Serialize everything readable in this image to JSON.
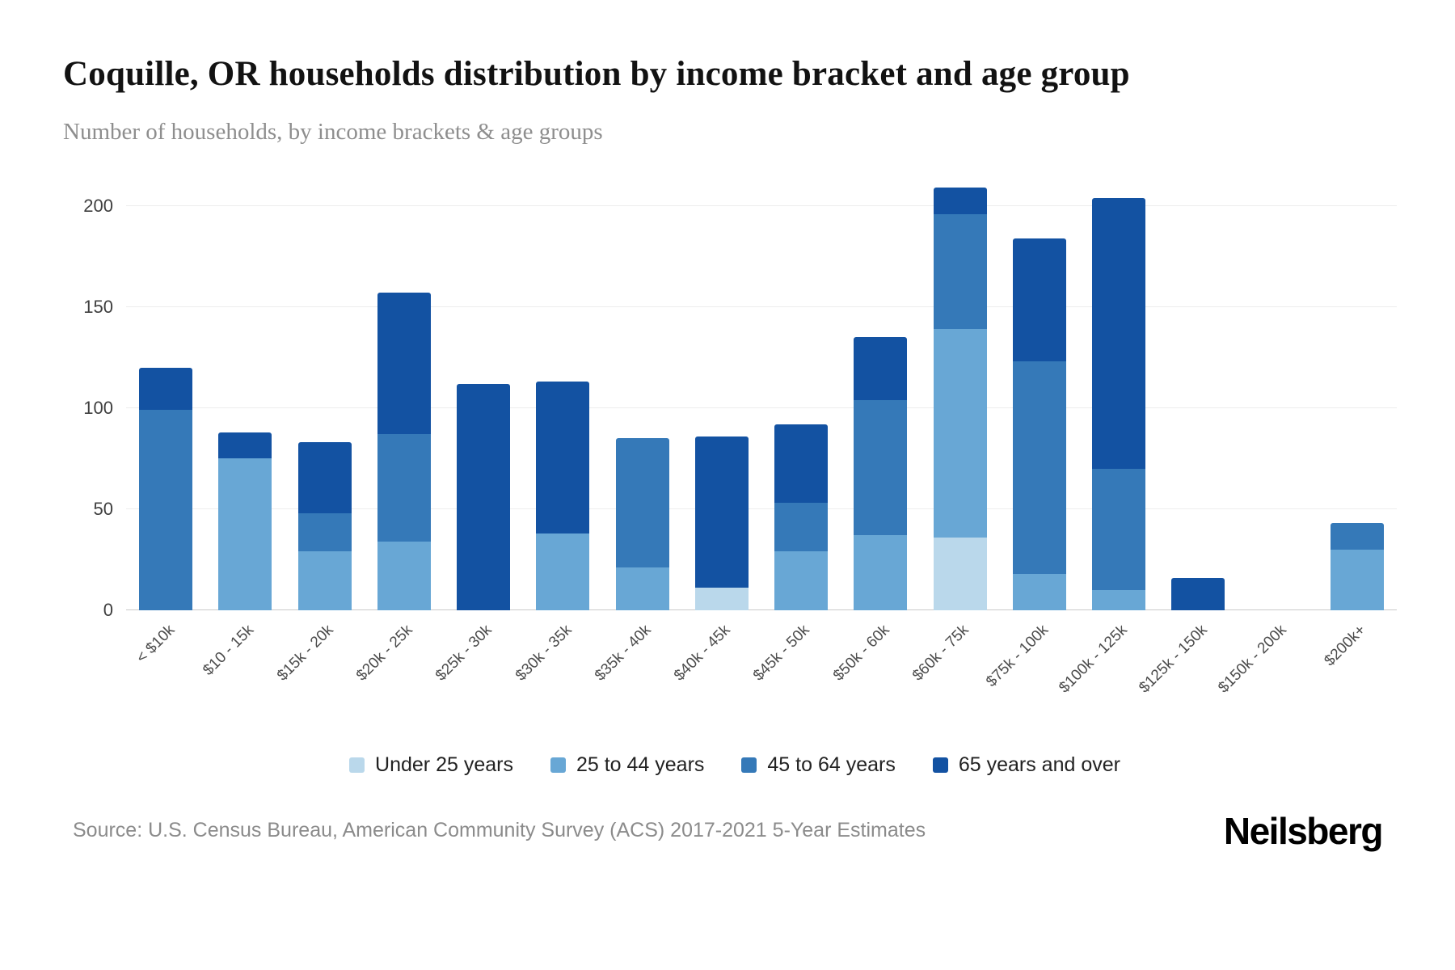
{
  "header": {
    "title": "Coquille, OR households distribution by income bracket and age group",
    "subtitle": "Number of households, by income brackets & age groups"
  },
  "footer": {
    "source": "Source: U.S. Census Bureau, American Community Survey (ACS) 2017-2021 5-Year Estimates",
    "brand": "Neilsberg"
  },
  "chart_data": {
    "type": "bar",
    "stacked": true,
    "title": "Coquille, OR households distribution by income bracket and age group",
    "subtitle": "Number of households, by income brackets & age groups",
    "xlabel": "",
    "ylabel": "",
    "ylim": [
      0,
      210
    ],
    "yticks": [
      0,
      50,
      100,
      150,
      200
    ],
    "grid": true,
    "legend_position": "bottom",
    "categories": [
      "< $10k",
      "$10 - 15k",
      "$15k - 20k",
      "$20k - 25k",
      "$25k - 30k",
      "$30k - 35k",
      "$35k - 40k",
      "$40k - 45k",
      "$45k - 50k",
      "$50k - 60k",
      "$60k - 75k",
      "$75k - 100k",
      "$100k - 125k",
      "$125k - 150k",
      "$150k - 200k",
      "$200k+"
    ],
    "series": [
      {
        "name": "Under 25 years",
        "color": "#bad8eb",
        "values": [
          0,
          0,
          0,
          0,
          0,
          0,
          0,
          11,
          0,
          0,
          36,
          0,
          0,
          0,
          0,
          0
        ]
      },
      {
        "name": "25 to 44 years",
        "color": "#68a7d5",
        "values": [
          0,
          75,
          29,
          34,
          0,
          38,
          21,
          0,
          29,
          37,
          103,
          18,
          10,
          0,
          0,
          30
        ]
      },
      {
        "name": "45 to 64 years",
        "color": "#3579b8",
        "values": [
          99,
          0,
          19,
          53,
          0,
          0,
          64,
          0,
          24,
          67,
          57,
          105,
          60,
          0,
          0,
          13
        ]
      },
      {
        "name": "65 years and over",
        "color": "#1352a2",
        "values": [
          21,
          13,
          35,
          70,
          112,
          75,
          0,
          75,
          39,
          31,
          13,
          61,
          134,
          16,
          0,
          0
        ]
      }
    ],
    "totals": [
      120,
      88,
      83,
      157,
      112,
      113,
      85,
      86,
      92,
      135,
      209,
      184,
      204,
      16,
      0,
      43
    ]
  }
}
